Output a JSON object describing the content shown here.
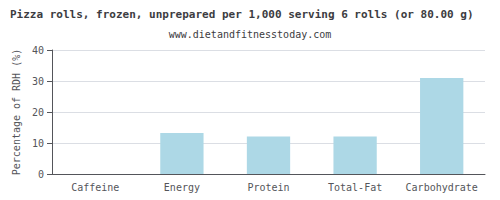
{
  "chart_data": {
    "type": "bar",
    "title": "Pizza rolls, frozen, unprepared per 1,000 serving 6 rolls (or 80.00 g)",
    "subtitle": "www.dietandfitnesstoday.com",
    "categories": [
      "Caffeine",
      "Energy",
      "Protein",
      "Total-Fat",
      "Carbohydrate"
    ],
    "values": [
      0,
      13.2,
      12.1,
      12.1,
      31.0
    ],
    "color": "#add8e6",
    "ylabel": "Percentage of RDH (%)",
    "ylim": [
      0,
      40
    ],
    "yticks": [
      0,
      10,
      20,
      30,
      40
    ],
    "grid": true
  }
}
